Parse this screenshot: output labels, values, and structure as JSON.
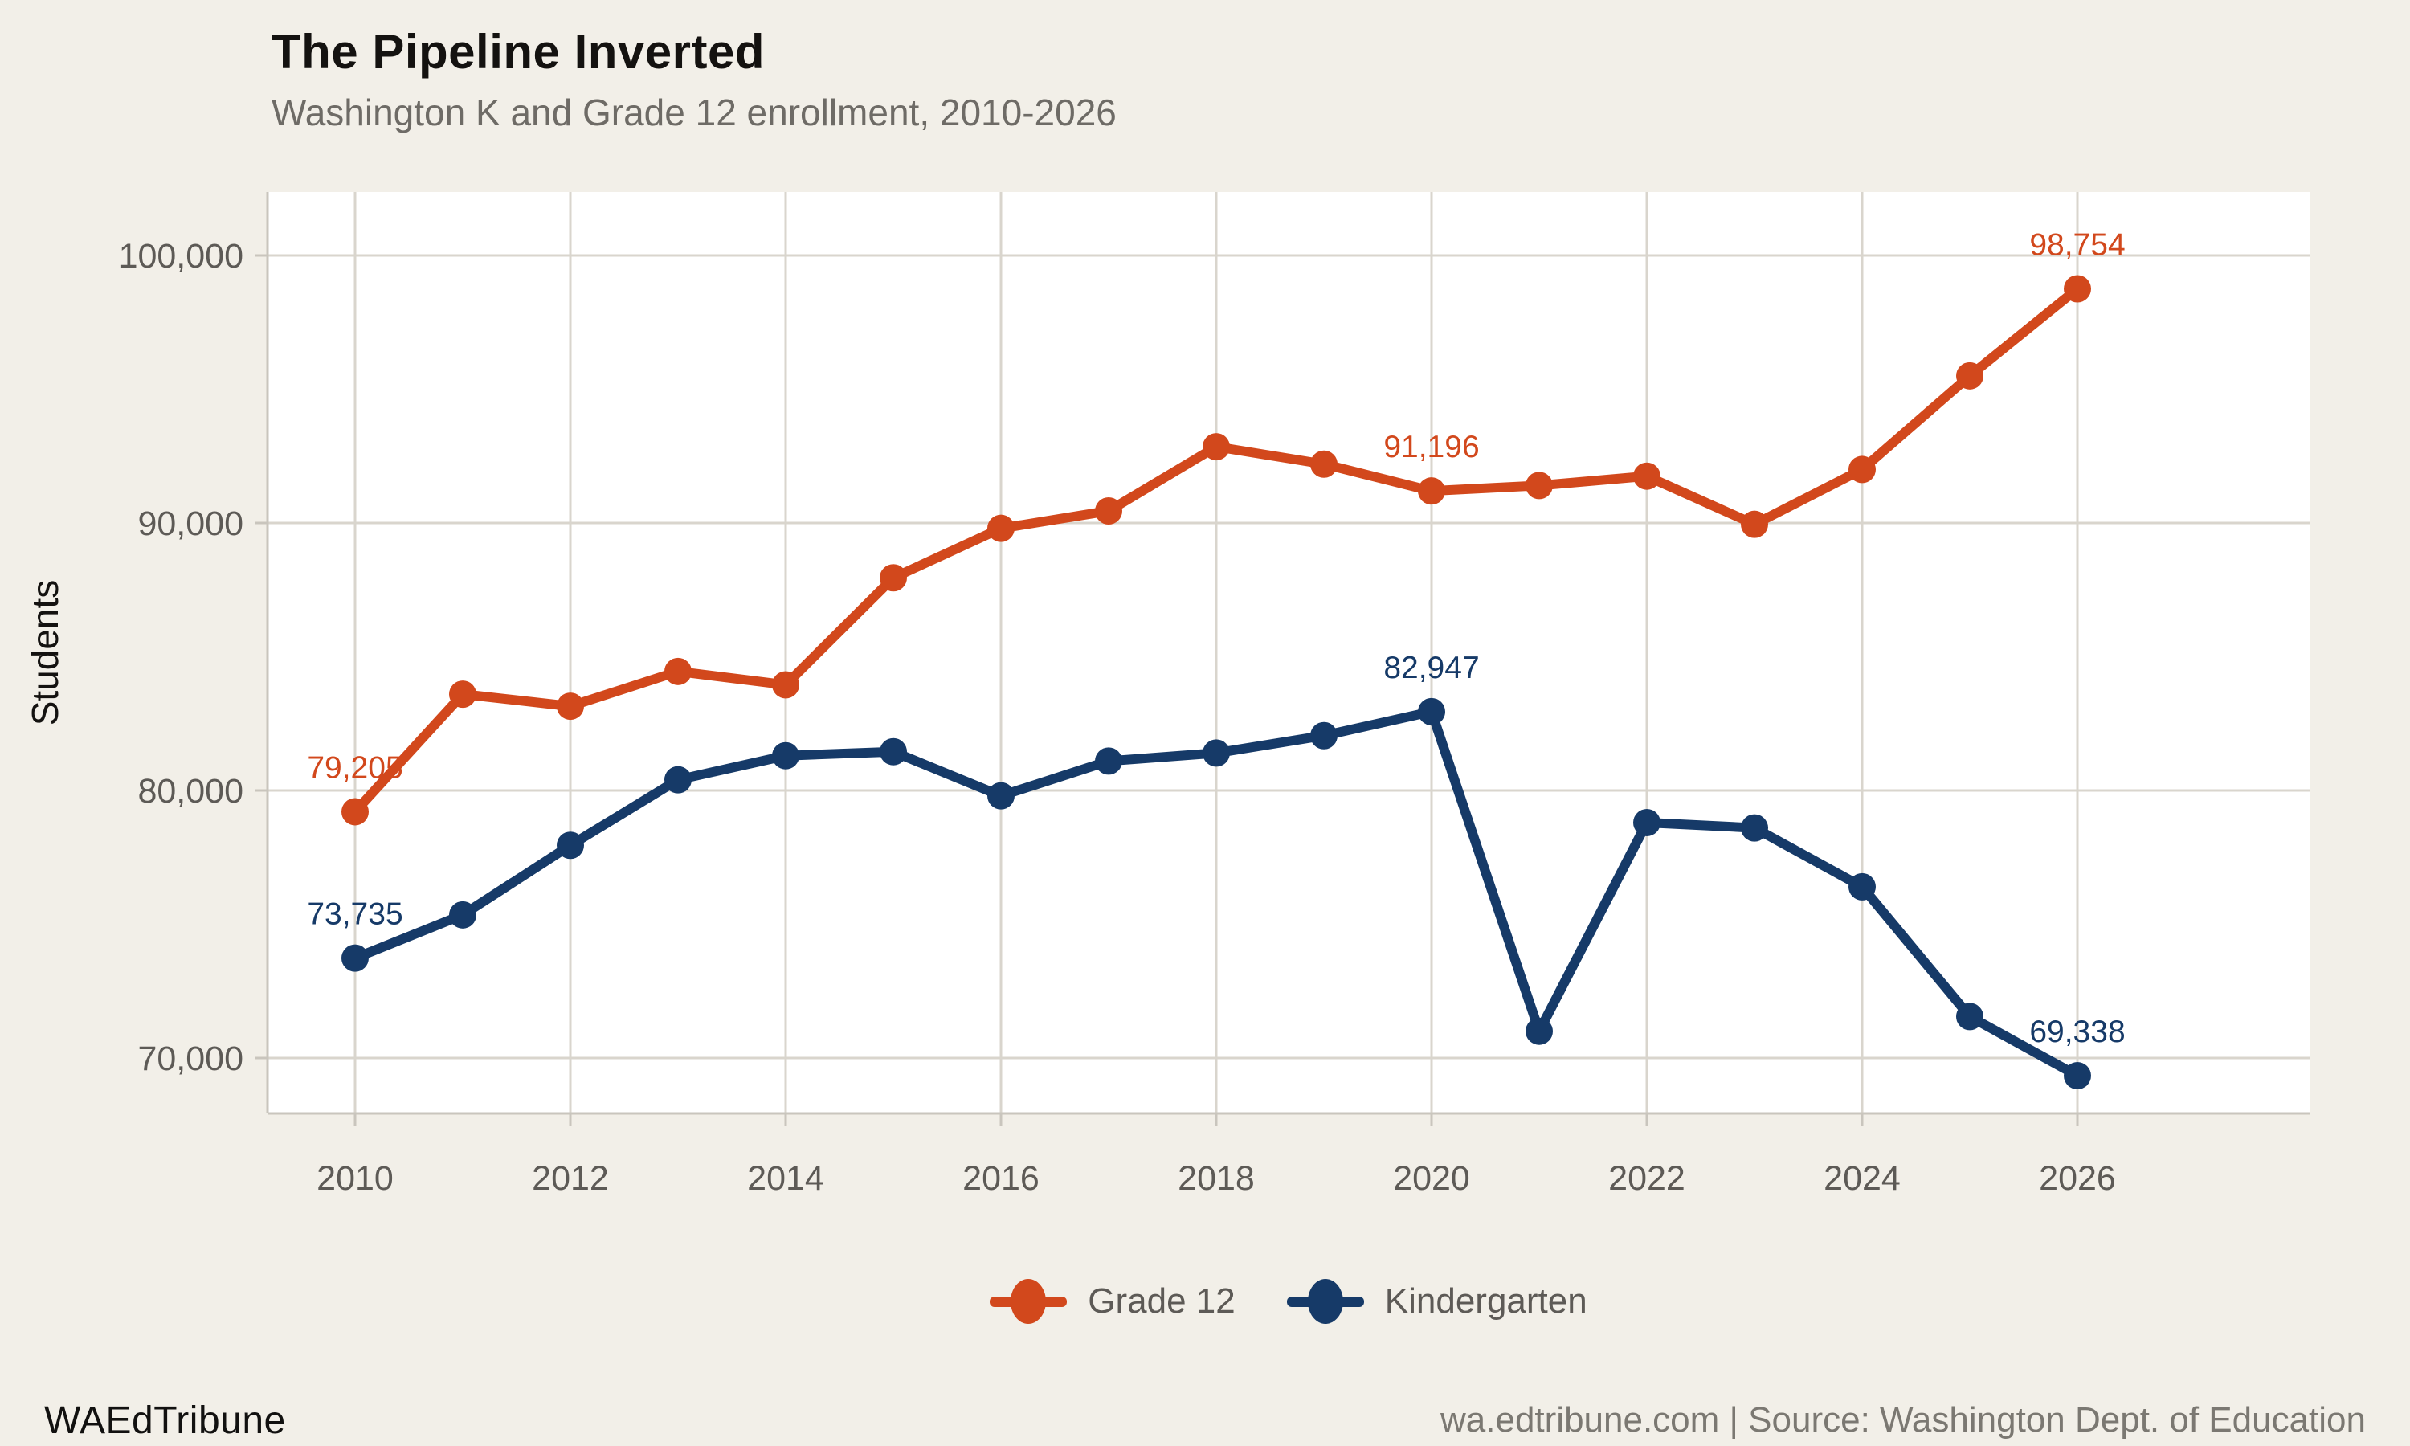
{
  "header": {
    "title": "The Pipeline Inverted",
    "subtitle": "Washington K and Grade 12 enrollment, 2010-2026"
  },
  "colors": {
    "background": "#F2EFE8",
    "plot_background": "#FFFFFF",
    "gridline": "#D9D5CD",
    "axis_line": "#C9C5BD",
    "axis_text": "#5D5A56",
    "title_text": "#141210",
    "subtitle_text": "#6E6B66",
    "legend_text": "#5D5A56",
    "source_text": "#7B7872",
    "grade12": "#D2481C",
    "kindergarten": "#163A68"
  },
  "chart_data": {
    "type": "line",
    "title": "The Pipeline Inverted",
    "subtitle": "Washington K and Grade 12 enrollment, 2010-2026",
    "xlabel": "",
    "ylabel": "Students",
    "ylim": [
      68000,
      102300
    ],
    "grid": "light gray horizontal and vertical gridlines on white panel",
    "legend_position": "bottom center",
    "x": [
      2010,
      2011,
      2012,
      2013,
      2014,
      2015,
      2016,
      2017,
      2018,
      2019,
      2020,
      2021,
      2022,
      2023,
      2024,
      2025,
      2026
    ],
    "series": [
      {
        "name": "Grade 12",
        "color_key": "grade12",
        "values": [
          79205,
          83600,
          83150,
          84450,
          83950,
          87950,
          89800,
          90450,
          92850,
          92200,
          91196,
          91400,
          91750,
          89950,
          92000,
          95500,
          98754
        ]
      },
      {
        "name": "Kindergarten",
        "color_key": "kindergarten",
        "values": [
          73735,
          75350,
          77950,
          80400,
          81300,
          81450,
          79800,
          81100,
          81400,
          82050,
          82947,
          71000,
          78800,
          78600,
          76400,
          71550,
          69338
        ]
      }
    ],
    "point_labels": [
      {
        "series": "Grade 12",
        "year": 2010,
        "label": "79,205"
      },
      {
        "series": "Grade 12",
        "year": 2020,
        "label": "91,196"
      },
      {
        "series": "Grade 12",
        "year": 2026,
        "label": "98,754"
      },
      {
        "series": "Kindergarten",
        "year": 2010,
        "label": "73,735"
      },
      {
        "series": "Kindergarten",
        "year": 2020,
        "label": "82,947"
      },
      {
        "series": "Kindergarten",
        "year": 2026,
        "label": "69,338"
      }
    ],
    "y_ticks": [
      {
        "value": 100000,
        "label": "100,000"
      },
      {
        "value": 90000,
        "label": "90,000"
      },
      {
        "value": 80000,
        "label": "80,000"
      },
      {
        "value": 70000,
        "label": "70,000"
      }
    ],
    "x_ticks": [
      {
        "value": 2010,
        "label": "2010"
      },
      {
        "value": 2012,
        "label": "2012"
      },
      {
        "value": 2014,
        "label": "2014"
      },
      {
        "value": 2016,
        "label": "2016"
      },
      {
        "value": 2018,
        "label": "2018"
      },
      {
        "value": 2020,
        "label": "2020"
      },
      {
        "value": 2022,
        "label": "2022"
      },
      {
        "value": 2024,
        "label": "2024"
      },
      {
        "value": 2026,
        "label": "2026"
      }
    ]
  },
  "legend": {
    "items": [
      {
        "label": "Grade 12",
        "color_key": "grade12"
      },
      {
        "label": "Kindergarten",
        "color_key": "kindergarten"
      }
    ]
  },
  "footer": {
    "brand": "WAEdTribune",
    "source": "wa.edtribune.com | Source: Washington Dept. of Education"
  }
}
